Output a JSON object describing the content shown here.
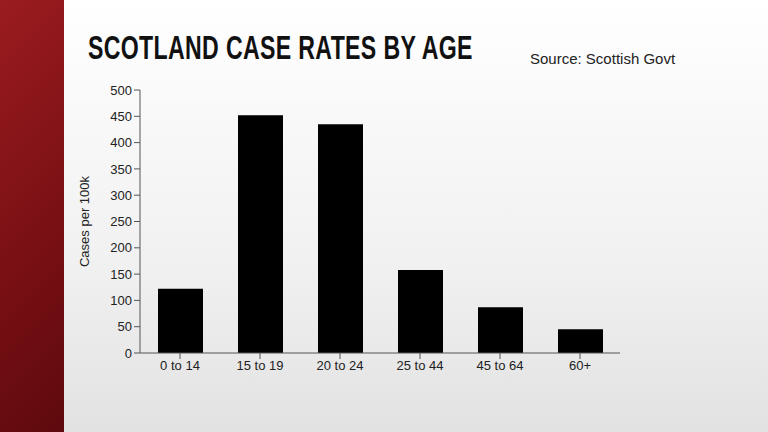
{
  "chart_data": {
    "type": "bar",
    "title": "SCOTLAND CASE RATES BY AGE",
    "source": "Source: Scottish Govt",
    "y_label": "Cases per 100k",
    "categories": [
      "0 to 14",
      "15 to 19",
      "20 to 24",
      "25 to 44",
      "45 to 64",
      "60+"
    ],
    "values": [
      122,
      452,
      435,
      158,
      87,
      45
    ],
    "color": "#000000",
    "ylim": [
      0,
      500
    ],
    "yticks": [
      0,
      50,
      100,
      150,
      200,
      250,
      300,
      350,
      400,
      450,
      500
    ],
    "grid": false
  }
}
